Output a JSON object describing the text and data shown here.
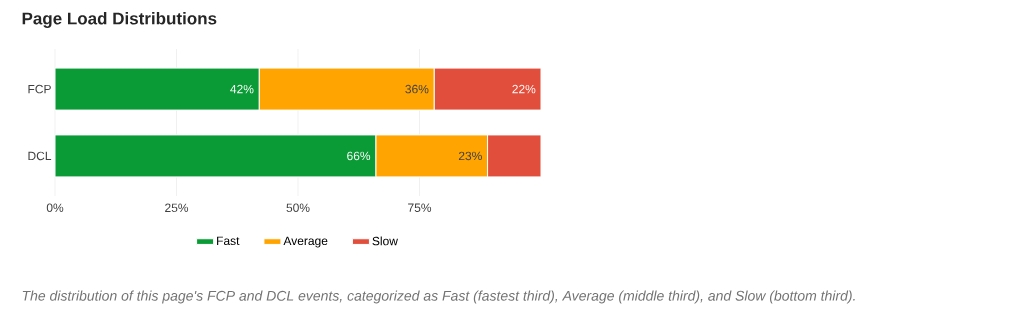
{
  "chart_data": {
    "type": "bar",
    "title": "Page Load Distributions",
    "orientation": "horizontal",
    "stacked": true,
    "categories": [
      "FCP",
      "DCL"
    ],
    "series": [
      {
        "name": "Fast",
        "color": "#0a9b36",
        "values": [
          42,
          66
        ],
        "value_labels": [
          "42%",
          "66%"
        ]
      },
      {
        "name": "Average",
        "color": "#ffa400",
        "values": [
          36,
          23
        ],
        "value_labels": [
          "36%",
          "23%"
        ]
      },
      {
        "name": "Slow",
        "color": "#e14e3c",
        "values": [
          22,
          11
        ],
        "value_labels": [
          "22%",
          null
        ]
      }
    ],
    "xlim": [
      0,
      100
    ],
    "xticks": [
      {
        "value": 0,
        "label": "0%"
      },
      {
        "value": 25,
        "label": "25%"
      },
      {
        "value": 50,
        "label": "50%"
      },
      {
        "value": 75,
        "label": "75%"
      }
    ],
    "grid": "x",
    "legend": "bottom",
    "annotations": [
      "The distribution of this page's FCP and DCL events, categorized as Fast (fastest third), Average (middle third), and Slow (bottom third)."
    ]
  }
}
